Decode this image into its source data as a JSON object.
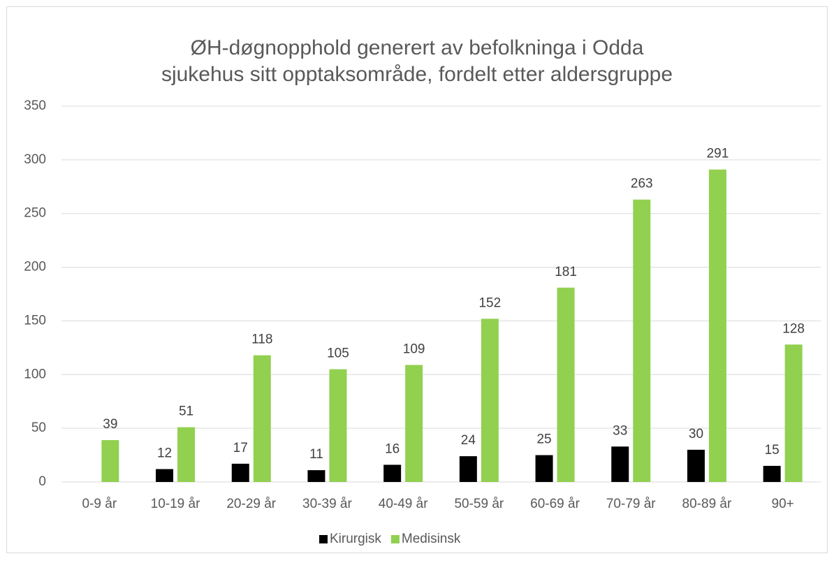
{
  "chart_data": {
    "type": "bar",
    "title": [
      "ØH-døgnopphold generert av befolkninga i Odda",
      "sjukehus sitt opptaksområde, fordelt etter aldersgruppe"
    ],
    "categories": [
      "0-9 år",
      "10-19 år",
      "20-29 år",
      "30-39 år",
      "40-49 år",
      "50-59 år",
      "60-69 år",
      "70-79 år",
      "80-89 år",
      "90+"
    ],
    "series": [
      {
        "name": "Kirurgisk",
        "color": "#000000",
        "values": [
          null,
          12,
          17,
          11,
          16,
          24,
          25,
          33,
          30,
          15
        ]
      },
      {
        "name": "Medisinsk",
        "color": "#92d050",
        "values": [
          39,
          51,
          118,
          105,
          109,
          152,
          181,
          263,
          291,
          128
        ]
      }
    ],
    "ylim": [
      0,
      350
    ],
    "yticks": [
      0,
      50,
      100,
      150,
      200,
      250,
      300,
      350
    ],
    "grid": true,
    "legend": "bottom"
  }
}
